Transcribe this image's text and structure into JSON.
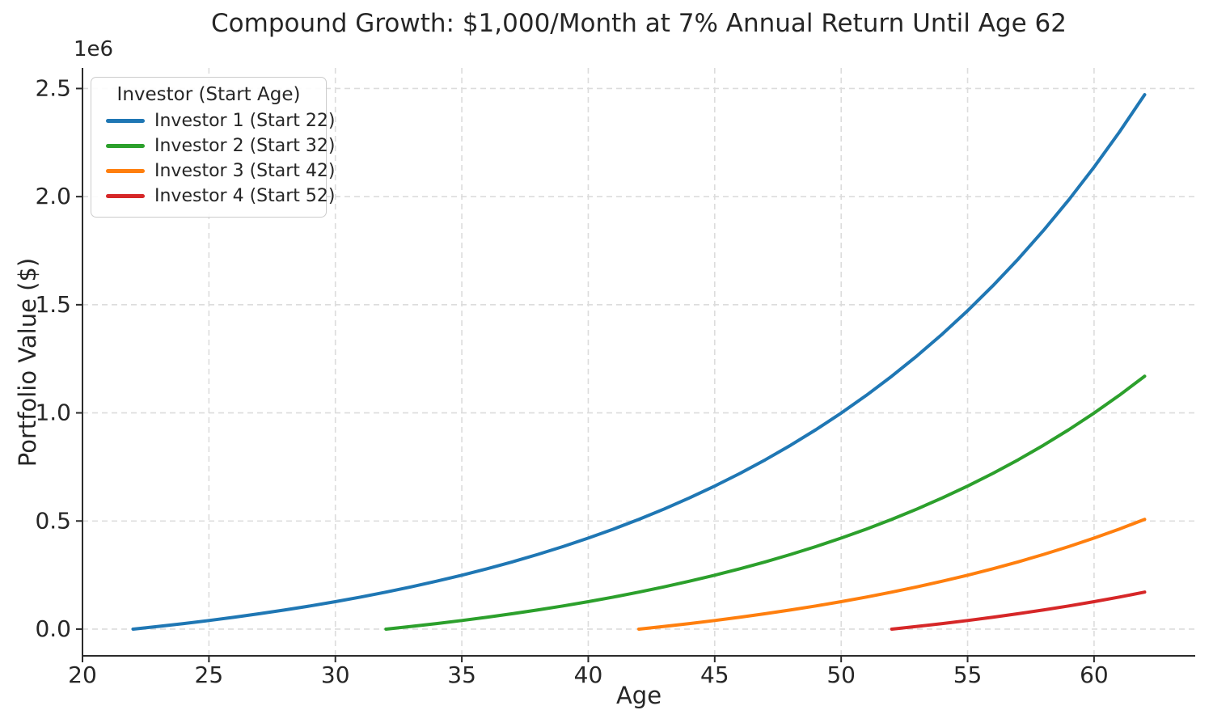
{
  "chart_data": {
    "type": "line",
    "title": "Compound Growth: $1,000/Month at 7% Annual Return Until Age 62",
    "xlabel": "Age",
    "ylabel": "Portfolio Value ($)",
    "y_offset_label": "1e6",
    "grid": true,
    "background_color": "#ffffff",
    "grid_color": "#dcdcdc",
    "spine_color": "#2b2b2b",
    "text_color": "#262626",
    "xlim": [
      20,
      64
    ],
    "ylim": [
      -123600,
      2595200
    ],
    "x_ticks": [
      20,
      25,
      30,
      35,
      40,
      45,
      50,
      55,
      60
    ],
    "x_tick_labels": [
      "20",
      "25",
      "30",
      "35",
      "40",
      "45",
      "50",
      "55",
      "60"
    ],
    "y_ticks": [
      0,
      500000,
      1000000,
      1500000,
      2000000,
      2500000
    ],
    "y_tick_labels": [
      "0.0",
      "0.5",
      "1.0",
      "1.5",
      "2.0",
      "2.5"
    ],
    "legend": {
      "title": "Investor (Start Age)",
      "position": "upper left"
    },
    "series": [
      {
        "name": "Investor 1 (Start 22)",
        "color": "#1f77b4",
        "start_age": 22,
        "end_age": 62,
        "values": [
          0,
          12400,
          25600,
          39800,
          55000,
          71200,
          88600,
          107100,
          127000,
          148300,
          171100,
          195400,
          221500,
          249300,
          279200,
          311100,
          345300,
          381800,
          420900,
          462800,
          507500,
          555400,
          606700,
          661600,
          720200,
          783000,
          850300,
          922100,
          999100,
          1081400,
          1169500,
          1263700,
          1364500,
          1472400,
          1587900,
          1711400,
          1843600,
          1985000,
          2136400,
          2298300,
          2471500
        ]
      },
      {
        "name": "Investor 2 (Start 32)",
        "color": "#2ca02c",
        "start_age": 32,
        "end_age": 62,
        "values": [
          0,
          12400,
          25600,
          39800,
          55000,
          71200,
          88600,
          107100,
          127000,
          148300,
          171100,
          195400,
          221500,
          249300,
          279200,
          311100,
          345300,
          381800,
          420900,
          462800,
          507500,
          555400,
          606700,
          661600,
          720200,
          783000,
          850300,
          922100,
          999100,
          1081400,
          1169500
        ]
      },
      {
        "name": "Investor 3 (Start 42)",
        "color": "#ff7f0e",
        "start_age": 42,
        "end_age": 62,
        "values": [
          0,
          12400,
          25600,
          39800,
          55000,
          71200,
          88600,
          107100,
          127000,
          148300,
          171100,
          195400,
          221500,
          249300,
          279200,
          311100,
          345300,
          381800,
          420900,
          462800,
          507500
        ]
      },
      {
        "name": "Investor 4 (Start 52)",
        "color": "#d62728",
        "start_age": 52,
        "end_age": 62,
        "values": [
          0,
          12400,
          25600,
          39800,
          55000,
          71200,
          88600,
          107100,
          127000,
          148300,
          171100
        ]
      }
    ]
  }
}
